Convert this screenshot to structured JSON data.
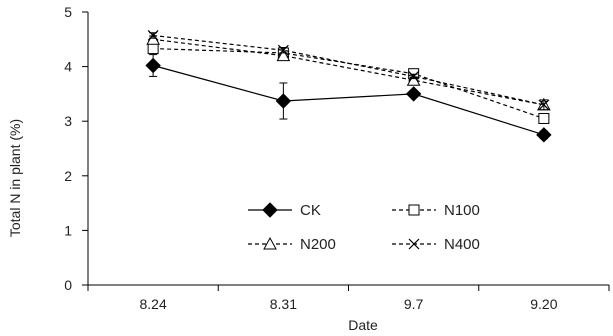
{
  "chart_data": {
    "type": "line",
    "xlabel": "Date",
    "ylabel": "Total N in plant (%)",
    "categories": [
      "8.24",
      "8.31",
      "9.7",
      "9.20"
    ],
    "ylim": [
      0,
      5
    ],
    "yticks": [
      0,
      1,
      2,
      3,
      4,
      5
    ],
    "grid": false,
    "legend_position": "center",
    "series": [
      {
        "name": "CK",
        "values": [
          4.02,
          3.37,
          3.5,
          2.75
        ],
        "error": [
          0.2,
          0.33,
          0.06,
          0.07
        ],
        "marker": "diamond-filled",
        "line": "solid",
        "color": "#000000"
      },
      {
        "name": "N100",
        "values": [
          4.33,
          4.25,
          3.87,
          3.05
        ],
        "error": [
          0.06,
          0.05,
          0.05,
          0.08
        ],
        "marker": "square-open",
        "line": "dashed",
        "color": "#000000"
      },
      {
        "name": "N200",
        "values": [
          4.5,
          4.2,
          3.75,
          3.3
        ],
        "error": [
          0.06,
          0.05,
          0.05,
          0.06
        ],
        "marker": "triangle-open",
        "line": "dashed",
        "color": "#000000"
      },
      {
        "name": "N400",
        "values": [
          4.57,
          4.3,
          3.82,
          3.3
        ],
        "error": [
          0.05,
          0.05,
          0.04,
          0.09
        ],
        "marker": "x",
        "line": "dashed",
        "color": "#000000"
      }
    ]
  }
}
